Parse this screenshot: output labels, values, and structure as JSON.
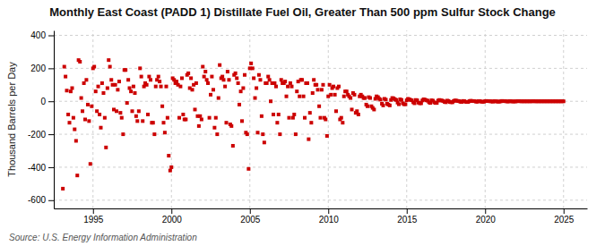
{
  "chart_data": {
    "type": "scatter",
    "title": "Monthly East Coast (PADD 1) Distillate Fuel Oil, Greater Than 500 ppm Sulfur Stock Change",
    "ylabel": "Thousand Barrels per Day",
    "annotations": [
      "Source: U.S. Energy Information Administration"
    ],
    "color": "#cc0000",
    "marker": "square",
    "grid": true,
    "xlim": [
      1992.5,
      2026.5
    ],
    "ylim": [
      -650,
      430
    ],
    "xticks": [
      1995,
      2000,
      2005,
      2010,
      2015,
      2020,
      2025
    ],
    "yticks": [
      -600,
      -400,
      -200,
      0,
      200,
      400
    ],
    "x": [
      1993.08,
      1993.17,
      1993.25,
      1993.33,
      1993.42,
      1993.5,
      1993.58,
      1993.67,
      1993.75,
      1993.83,
      1993.92,
      1994,
      1994.08,
      1994.17,
      1994.25,
      1994.33,
      1994.42,
      1994.5,
      1994.58,
      1994.67,
      1994.75,
      1994.83,
      1994.92,
      1995,
      1995.08,
      1995.17,
      1995.25,
      1995.33,
      1995.42,
      1995.5,
      1995.58,
      1995.67,
      1995.75,
      1995.83,
      1995.92,
      1996,
      1996.08,
      1996.17,
      1996.25,
      1996.33,
      1996.42,
      1996.5,
      1996.58,
      1996.67,
      1996.75,
      1996.83,
      1996.92,
      1997,
      1997.08,
      1997.17,
      1997.25,
      1997.33,
      1997.42,
      1997.5,
      1997.58,
      1997.67,
      1997.75,
      1997.83,
      1997.92,
      1998,
      1998.08,
      1998.17,
      1998.25,
      1998.33,
      1998.42,
      1998.5,
      1998.58,
      1998.67,
      1998.75,
      1998.83,
      1998.92,
      1999,
      1999.08,
      1999.17,
      1999.25,
      1999.33,
      1999.42,
      1999.5,
      1999.58,
      1999.67,
      1999.75,
      1999.83,
      1999.92,
      2000,
      2000.08,
      2000.17,
      2000.25,
      2000.33,
      2000.42,
      2000.5,
      2000.58,
      2000.67,
      2000.75,
      2000.83,
      2000.92,
      2001,
      2001.08,
      2001.17,
      2001.25,
      2001.33,
      2001.42,
      2001.5,
      2001.58,
      2001.67,
      2001.75,
      2001.83,
      2001.92,
      2002,
      2002.08,
      2002.17,
      2002.25,
      2002.33,
      2002.42,
      2002.5,
      2002.58,
      2002.67,
      2002.75,
      2002.83,
      2002.92,
      2003,
      2003.08,
      2003.17,
      2003.25,
      2003.33,
      2003.42,
      2003.5,
      2003.58,
      2003.67,
      2003.75,
      2003.83,
      2003.92,
      2004,
      2004.08,
      2004.17,
      2004.25,
      2004.33,
      2004.42,
      2004.5,
      2004.58,
      2004.67,
      2004.75,
      2004.83,
      2004.92,
      2005,
      2005.08,
      2005.17,
      2005.25,
      2005.33,
      2005.42,
      2005.5,
      2005.58,
      2005.67,
      2005.75,
      2005.83,
      2005.92,
      2006,
      2006.08,
      2006.17,
      2006.25,
      2006.33,
      2006.42,
      2006.5,
      2006.58,
      2006.67,
      2006.75,
      2006.83,
      2006.92,
      2007,
      2007.08,
      2007.17,
      2007.25,
      2007.33,
      2007.42,
      2007.5,
      2007.58,
      2007.67,
      2007.75,
      2007.83,
      2007.92,
      2008,
      2008.08,
      2008.17,
      2008.25,
      2008.33,
      2008.42,
      2008.5,
      2008.58,
      2008.67,
      2008.75,
      2008.83,
      2008.92,
      2009,
      2009.08,
      2009.17,
      2009.25,
      2009.33,
      2009.42,
      2009.5,
      2009.58,
      2009.67,
      2009.75,
      2009.83,
      2009.92,
      2010,
      2010.08,
      2010.17,
      2010.25,
      2010.33,
      2010.42,
      2010.5,
      2010.58,
      2010.67,
      2010.75,
      2010.83,
      2010.92,
      2011,
      2011.08,
      2011.17,
      2011.25,
      2011.33,
      2011.42,
      2011.5,
      2011.58,
      2011.67,
      2011.75,
      2011.83,
      2011.92,
      2012,
      2012.08,
      2012.17,
      2012.25,
      2012.33,
      2012.42,
      2012.5,
      2012.58,
      2012.67,
      2012.75,
      2012.83,
      2012.92,
      2013,
      2013.08,
      2013.17,
      2013.25,
      2013.33,
      2013.42,
      2013.5,
      2013.58,
      2013.67,
      2013.75,
      2013.83,
      2013.92,
      2014,
      2014.08,
      2014.17,
      2014.25,
      2014.33,
      2014.42,
      2014.5,
      2014.58,
      2014.67,
      2014.75,
      2014.83,
      2014.92,
      2015,
      2015.08,
      2015.17,
      2015.25,
      2015.33,
      2015.42,
      2015.5,
      2015.58,
      2015.67,
      2015.75,
      2015.83,
      2015.92,
      2016,
      2016.08,
      2016.17,
      2016.25,
      2016.33,
      2016.42,
      2016.5,
      2016.58,
      2016.67,
      2016.75,
      2016.83,
      2016.92,
      2017,
      2017.08,
      2017.17,
      2017.25,
      2017.33,
      2017.42,
      2017.5,
      2017.58,
      2017.67,
      2017.75,
      2017.83,
      2017.92,
      2018,
      2018.08,
      2018.17,
      2018.25,
      2018.33,
      2018.42,
      2018.5,
      2018.58,
      2018.67,
      2018.75,
      2018.83,
      2018.92,
      2019,
      2019.08,
      2019.17,
      2019.25,
      2019.33,
      2019.42,
      2019.5,
      2019.58,
      2019.67,
      2019.75,
      2019.83,
      2019.92,
      2020,
      2020.08,
      2020.17,
      2020.25,
      2020.33,
      2020.42,
      2020.5,
      2020.58,
      2020.67,
      2020.75,
      2020.83,
      2020.92,
      2021,
      2021.08,
      2021.17,
      2021.25,
      2021.33,
      2021.42,
      2021.5,
      2021.58,
      2021.67,
      2021.75,
      2021.83,
      2021.92,
      2022,
      2022.08,
      2022.17,
      2022.25,
      2022.33,
      2022.42,
      2022.5,
      2022.58,
      2022.67,
      2022.75,
      2022.83,
      2022.92,
      2023,
      2023.08,
      2023.17,
      2023.25,
      2023.33,
      2023.42,
      2023.5,
      2023.58,
      2023.67,
      2023.75,
      2023.83,
      2023.92,
      2024,
      2024.08,
      2024.17,
      2024.25,
      2024.33,
      2024.42,
      2024.5,
      2024.58,
      2024.67,
      2024.75,
      2024.83,
      2024.92,
      2025
    ],
    "values": [
      -530,
      210,
      150,
      65,
      -80,
      -130,
      60,
      80,
      -100,
      -170,
      -240,
      -450,
      250,
      240,
      20,
      -60,
      110,
      -110,
      130,
      -20,
      -120,
      -380,
      -30,
      200,
      210,
      60,
      -60,
      90,
      -80,
      -160,
      110,
      50,
      -100,
      -280,
      80,
      250,
      210,
      130,
      100,
      -50,
      100,
      -60,
      70,
      120,
      -70,
      -100,
      -200,
      190,
      190,
      -10,
      130,
      80,
      60,
      -60,
      90,
      50,
      -90,
      -120,
      -60,
      200,
      150,
      -120,
      90,
      110,
      100,
      -80,
      150,
      130,
      -130,
      -130,
      -200,
      90,
      130,
      150,
      120,
      90,
      -30,
      -130,
      -190,
      90,
      -100,
      -330,
      -420,
      -400,
      140,
      130,
      110,
      120,
      100,
      -100,
      90,
      140,
      -80,
      -110,
      -110,
      160,
      170,
      80,
      140,
      70,
      100,
      -50,
      110,
      -90,
      -150,
      -90,
      -110,
      210,
      150,
      180,
      130,
      110,
      -100,
      40,
      150,
      70,
      -160,
      -100,
      -200,
      20,
      220,
      140,
      150,
      130,
      90,
      -130,
      180,
      130,
      -140,
      -150,
      -270,
      160,
      170,
      140,
      110,
      -20,
      60,
      -120,
      80,
      160,
      -190,
      -200,
      -410,
      200,
      230,
      200,
      140,
      20,
      80,
      -190,
      160,
      130,
      -90,
      -200,
      -250,
      110,
      110,
      150,
      130,
      0,
      110,
      -80,
      110,
      90,
      -130,
      -80,
      -200,
      130,
      110,
      110,
      120,
      30,
      90,
      -100,
      110,
      90,
      -100,
      -80,
      -200,
      60,
      120,
      30,
      130,
      130,
      30,
      -100,
      110,
      110,
      -230,
      -70,
      -130,
      50,
      130,
      100,
      100,
      70,
      -30,
      -100,
      70,
      100,
      -100,
      -110,
      -210,
      30,
      100,
      40,
      80,
      90,
      40,
      -60,
      80,
      90,
      -110,
      -100,
      -130,
      30,
      60,
      60,
      40,
      30,
      20,
      -50,
      50,
      40,
      -70,
      -60,
      -80,
      30,
      40,
      30,
      20,
      20,
      -20,
      -30,
      25,
      20,
      -30,
      -40,
      -50,
      15,
      30,
      25,
      15,
      10,
      -15,
      -25,
      15,
      10,
      -15,
      -20,
      -25,
      8,
      20,
      18,
      12,
      8,
      -8,
      -18,
      12,
      8,
      -12,
      -18,
      -18,
      6,
      15,
      12,
      8,
      6,
      -6,
      -12,
      8,
      6,
      -8,
      -12,
      -12,
      5,
      12,
      10,
      6,
      4,
      -6,
      -10,
      6,
      4,
      -6,
      -10,
      -10,
      4,
      8,
      6,
      4,
      2,
      -4,
      -6,
      4,
      2,
      -4,
      -6,
      -6,
      2,
      5,
      4,
      2,
      1,
      -3,
      -4,
      2,
      1,
      -3,
      -4,
      -4,
      1,
      3,
      2,
      1,
      1,
      -2,
      -3,
      1,
      1,
      -2,
      -3,
      -3,
      1,
      2,
      1,
      1,
      0,
      -1,
      -2,
      1,
      0,
      -1,
      -2,
      -2,
      0,
      2,
      1,
      1,
      0,
      -1,
      -1,
      1,
      0,
      -1,
      -1,
      -1,
      0,
      1,
      1,
      0,
      0,
      0,
      0,
      0,
      0,
      0,
      0,
      0,
      0,
      1,
      0,
      0,
      0,
      0,
      0,
      0,
      0,
      0,
      0,
      0,
      0,
      0,
      0,
      0,
      0,
      0,
      0,
      0,
      0,
      0,
      0,
      0,
      0
    ]
  }
}
